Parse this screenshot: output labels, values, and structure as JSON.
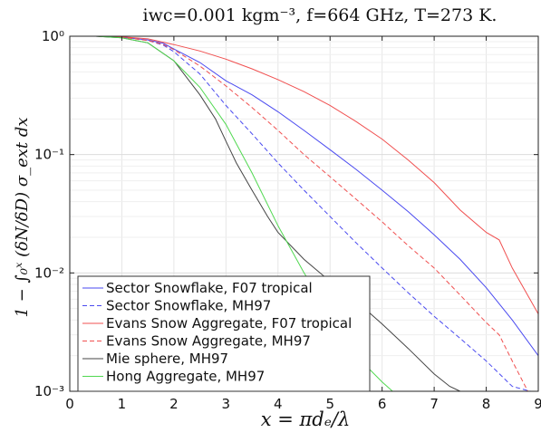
{
  "chart_data": {
    "type": "line",
    "title": "iwc=0.001 kgm⁻³, f=664 GHz, T=273 K.",
    "xlabel": "x = πdₑ/λ",
    "ylabel": "1 − ∫₀ˣ (δN/δD) σ_ext dx",
    "xlim": [
      0,
      9
    ],
    "ylim": [
      0.001,
      1
    ],
    "yscale": "log",
    "grid": true,
    "legend_position": "bottom-left",
    "xticks": [
      "0",
      "1",
      "2",
      "3",
      "4",
      "5",
      "6",
      "7",
      "8",
      "9"
    ],
    "yticks": [
      "10⁰",
      "10⁻¹",
      "10⁻²",
      "10⁻³"
    ],
    "yticks_values": [
      1,
      0.1,
      0.01,
      0.001
    ],
    "series": [
      {
        "name": "Sector Snowflake, F07 tropical",
        "color": "#4a4af0",
        "dash": "solid",
        "x": [
          0,
          0.5,
          1.0,
          1.5,
          1.8,
          2.0,
          2.5,
          3.0,
          3.5,
          4.0,
          4.5,
          5.0,
          5.5,
          6.0,
          6.5,
          7.0,
          7.5,
          8.0,
          8.5,
          9.0
        ],
        "y": [
          1.0,
          1.0,
          0.98,
          0.93,
          0.87,
          0.78,
          0.6,
          0.42,
          0.32,
          0.23,
          0.16,
          0.11,
          0.075,
          0.05,
          0.033,
          0.021,
          0.013,
          0.0075,
          0.004,
          0.002
        ]
      },
      {
        "name": "Sector Snowflake, MH97",
        "color": "#4a4af0",
        "dash": "dashed",
        "x": [
          0,
          0.5,
          1.0,
          1.5,
          1.8,
          2.0,
          2.5,
          3.0,
          3.5,
          4.0,
          4.5,
          5.0,
          5.5,
          6.0,
          6.5,
          7.0,
          7.5,
          8.0,
          8.5,
          8.85
        ],
        "y": [
          1.0,
          1.0,
          0.98,
          0.92,
          0.84,
          0.74,
          0.48,
          0.26,
          0.15,
          0.085,
          0.05,
          0.03,
          0.018,
          0.011,
          0.0068,
          0.0043,
          0.0028,
          0.0018,
          0.0011,
          0.001
        ]
      },
      {
        "name": "Evans Snow Aggregate, F07 tropical",
        "color": "#f05050",
        "dash": "solid",
        "x": [
          0,
          0.5,
          1.0,
          1.5,
          2.0,
          2.5,
          3.0,
          3.5,
          4.0,
          4.5,
          5.0,
          5.5,
          6.0,
          6.5,
          7.0,
          7.5,
          8.0,
          8.25,
          8.5,
          9.0
        ],
        "y": [
          1.0,
          1.0,
          0.99,
          0.95,
          0.85,
          0.75,
          0.64,
          0.53,
          0.43,
          0.34,
          0.26,
          0.19,
          0.135,
          0.09,
          0.058,
          0.034,
          0.022,
          0.019,
          0.011,
          0.0045
        ]
      },
      {
        "name": "Evans Snow Aggregate, MH97",
        "color": "#f05050",
        "dash": "dashed",
        "x": [
          0,
          0.5,
          1.0,
          1.5,
          1.8,
          2.0,
          2.5,
          3.0,
          3.5,
          4.0,
          4.5,
          5.0,
          5.5,
          6.0,
          6.5,
          7.0,
          7.5,
          8.0,
          8.25,
          8.5,
          8.8
        ],
        "y": [
          1.0,
          1.0,
          0.98,
          0.92,
          0.85,
          0.77,
          0.56,
          0.38,
          0.25,
          0.16,
          0.1,
          0.065,
          0.042,
          0.027,
          0.017,
          0.011,
          0.0065,
          0.0038,
          0.003,
          0.0018,
          0.001
        ]
      },
      {
        "name": "Mie sphere, MH97",
        "color": "#444444",
        "dash": "solid",
        "x": [
          0,
          0.5,
          1.0,
          1.5,
          2.0,
          2.5,
          2.8,
          3.0,
          3.2,
          3.5,
          3.8,
          4.0,
          4.5,
          5.0,
          5.5,
          6.0,
          6.5,
          7.0,
          7.3,
          7.5
        ],
        "y": [
          1.0,
          1.0,
          0.97,
          0.88,
          0.62,
          0.32,
          0.2,
          0.13,
          0.085,
          0.05,
          0.03,
          0.022,
          0.013,
          0.0085,
          0.0058,
          0.0037,
          0.0023,
          0.0014,
          0.0011,
          0.001
        ]
      },
      {
        "name": "Hong Aggregate, MH97",
        "color": "#50d850",
        "dash": "solid",
        "x": [
          0,
          0.5,
          1.0,
          1.5,
          2.0,
          2.5,
          3.0,
          3.5,
          4.0,
          4.5,
          5.0,
          5.5,
          6.0,
          6.2
        ],
        "y": [
          1.0,
          1.0,
          0.97,
          0.88,
          0.62,
          0.37,
          0.18,
          0.07,
          0.025,
          0.01,
          0.0045,
          0.002,
          0.0012,
          0.001
        ]
      }
    ]
  }
}
